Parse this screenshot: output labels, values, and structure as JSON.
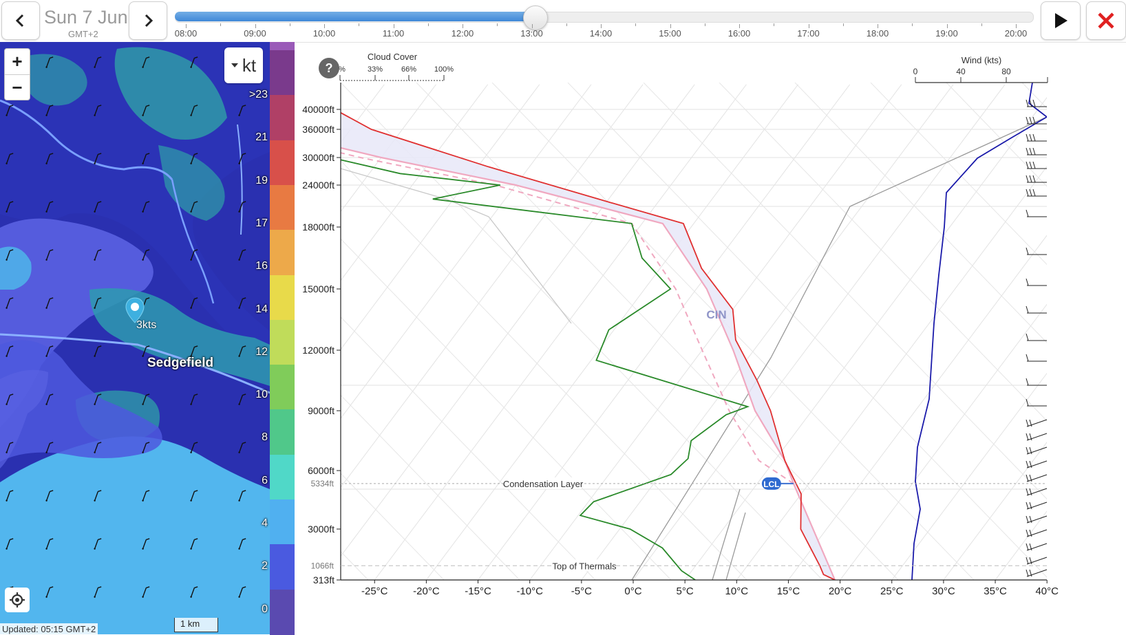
{
  "header": {
    "date": "Sun 7 Jun",
    "timezone": "GMT+2",
    "prev_icon": "chevron-left-icon",
    "next_icon": "chevron-right-icon",
    "play_icon": "play-icon",
    "close_icon": "close-icon",
    "close_color": "#e02020"
  },
  "timeline": {
    "hours": [
      "08:00",
      "09:00",
      "10:00",
      "11:00",
      "12:00",
      "13:00",
      "14:00",
      "15:00",
      "16:00",
      "17:00",
      "18:00",
      "19:00",
      "20:00"
    ],
    "selected": "13:00",
    "progress": 0.42,
    "fill_color": "#4a90dd"
  },
  "map": {
    "zoom_in": "+",
    "zoom_out": "−",
    "unit": "kt",
    "place_label": "Sedgefield",
    "marker_label": "3kts",
    "scale_label": "1 km",
    "updated": "Updated: 05:15 GMT+2",
    "locate_icon": "crosshair-icon"
  },
  "wind_scale": {
    "labels": [
      ">23",
      "21",
      "19",
      "17",
      "16",
      "14",
      "12",
      "10",
      "8",
      "6",
      "4",
      "2",
      "0"
    ],
    "colors": [
      "#7a3a8c",
      "#b04066",
      "#d8504a",
      "#e87a42",
      "#eda94a",
      "#e8da4a",
      "#c0dc5a",
      "#80cc5a",
      "#50c88a",
      "#50d8c8",
      "#50b0f0",
      "#4a5ae0",
      "#5a4ab0"
    ]
  },
  "sounding": {
    "help": "?",
    "cloud_cover_title": "Cloud Cover",
    "cloud_cover_ticks": [
      "0%",
      "33%",
      "66%",
      "100%"
    ],
    "wind_title": "Wind (kts)",
    "wind_ticks": [
      "0",
      "40",
      "80"
    ],
    "altitude_labels": [
      "40000ft",
      "36000ft",
      "30000ft",
      "24000ft",
      "18000ft",
      "15000ft",
      "12000ft",
      "9000ft",
      "6000ft",
      "3000ft",
      "313ft"
    ],
    "temp_labels": [
      "-25°C",
      "-20°C",
      "-15°C",
      "-10°C",
      "-5°C",
      "0°C",
      "5°C",
      "10°C",
      "15°C",
      "20°C",
      "25°C",
      "30°C",
      "35°C",
      "40°C"
    ],
    "cin_label": "CIN",
    "lcl_label": "LCL",
    "condensation_label": "Condensation Layer",
    "condensation_alt": "5334ft",
    "thermals_label": "Top of Thermals",
    "thermals_alt": "1066ft",
    "temp_color": "#e03030",
    "dew_color": "#2a8a2a",
    "parcel_color": "#f0a8c0",
    "wind_color": "#1a1aaa",
    "cin_fill": "#e8e8f8"
  }
}
